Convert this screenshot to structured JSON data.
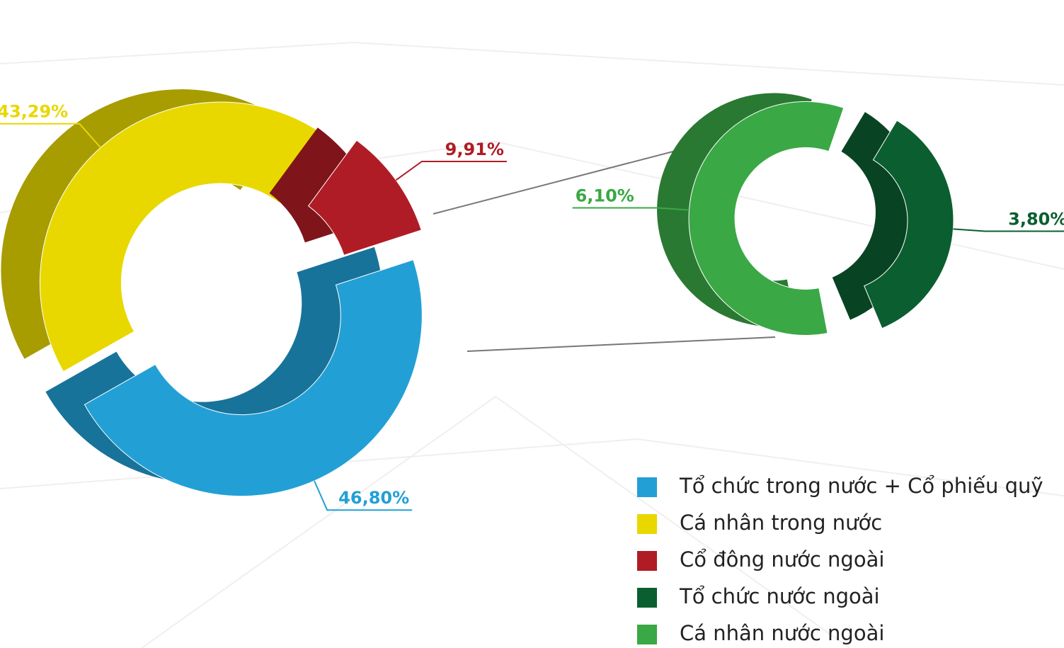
{
  "chart_data": [
    {
      "type": "donut",
      "categories": [
        "Tổ chức trong nước + Cổ phiếu quỹ",
        "Cá nhân trong nước",
        "Cổ đông nước ngoài"
      ],
      "values": [
        46.8,
        43.29,
        9.91
      ],
      "value_labels": [
        "46,80%",
        "43,29%",
        "9,91%"
      ],
      "colors": [
        "#22a0d6",
        "#e8d800",
        "#b01c25"
      ]
    },
    {
      "type": "donut",
      "categories": [
        "Tổ chức nước ngoài",
        "Cá nhân nước ngoài"
      ],
      "values": [
        3.8,
        6.1
      ],
      "value_labels": [
        "3,80%",
        "6,10%"
      ],
      "colors": [
        "#0b5e30",
        "#3aa845"
      ]
    }
  ]
}
